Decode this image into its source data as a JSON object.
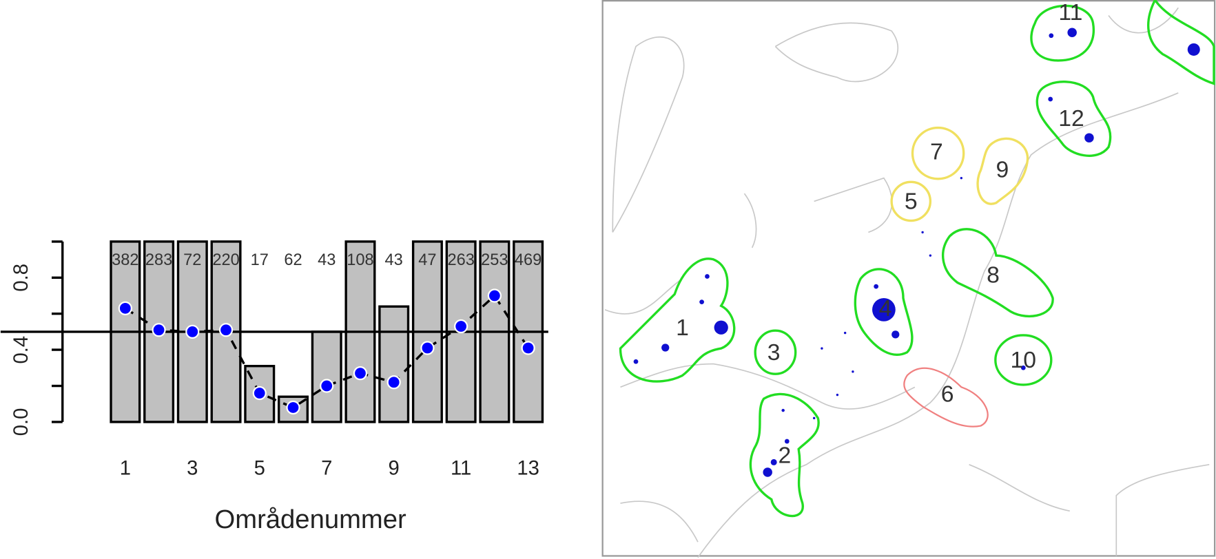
{
  "chart_data": {
    "type": "bar",
    "categories": [
      1,
      null,
      3,
      null,
      5,
      null,
      7,
      null,
      9,
      null,
      11,
      null,
      13
    ],
    "values": [
      1,
      1,
      1,
      1,
      0.31,
      0.14,
      0.5,
      1,
      0.64,
      1,
      1,
      1,
      1
    ],
    "points": [
      0.63,
      0.51,
      0.5,
      0.51,
      0.16,
      0.08,
      0.2,
      0.27,
      0.22,
      0.41,
      0.53,
      0.7,
      0.41
    ],
    "counts": [
      382,
      283,
      72,
      220,
      17,
      62,
      43,
      108,
      43,
      47,
      263,
      253,
      469
    ],
    "color": "#c0c0c0",
    "point_color": "#0000ff",
    "reference_line": 0.5,
    "ylim": [
      0,
      1
    ],
    "yticks": [
      {
        "value": 0,
        "label": "0.0"
      },
      {
        "value": 0.4,
        "label": "0.4"
      },
      {
        "value": 0.8,
        "label": "0.8"
      }
    ],
    "yticks_minor": [
      0.2,
      0.6,
      1
    ],
    "xlabel": "Områdenummer"
  },
  "map": {
    "region_labels": [
      "1",
      "2",
      "3",
      "4",
      "5",
      "6",
      "7",
      "8",
      "9",
      "10",
      "11",
      "12"
    ]
  }
}
